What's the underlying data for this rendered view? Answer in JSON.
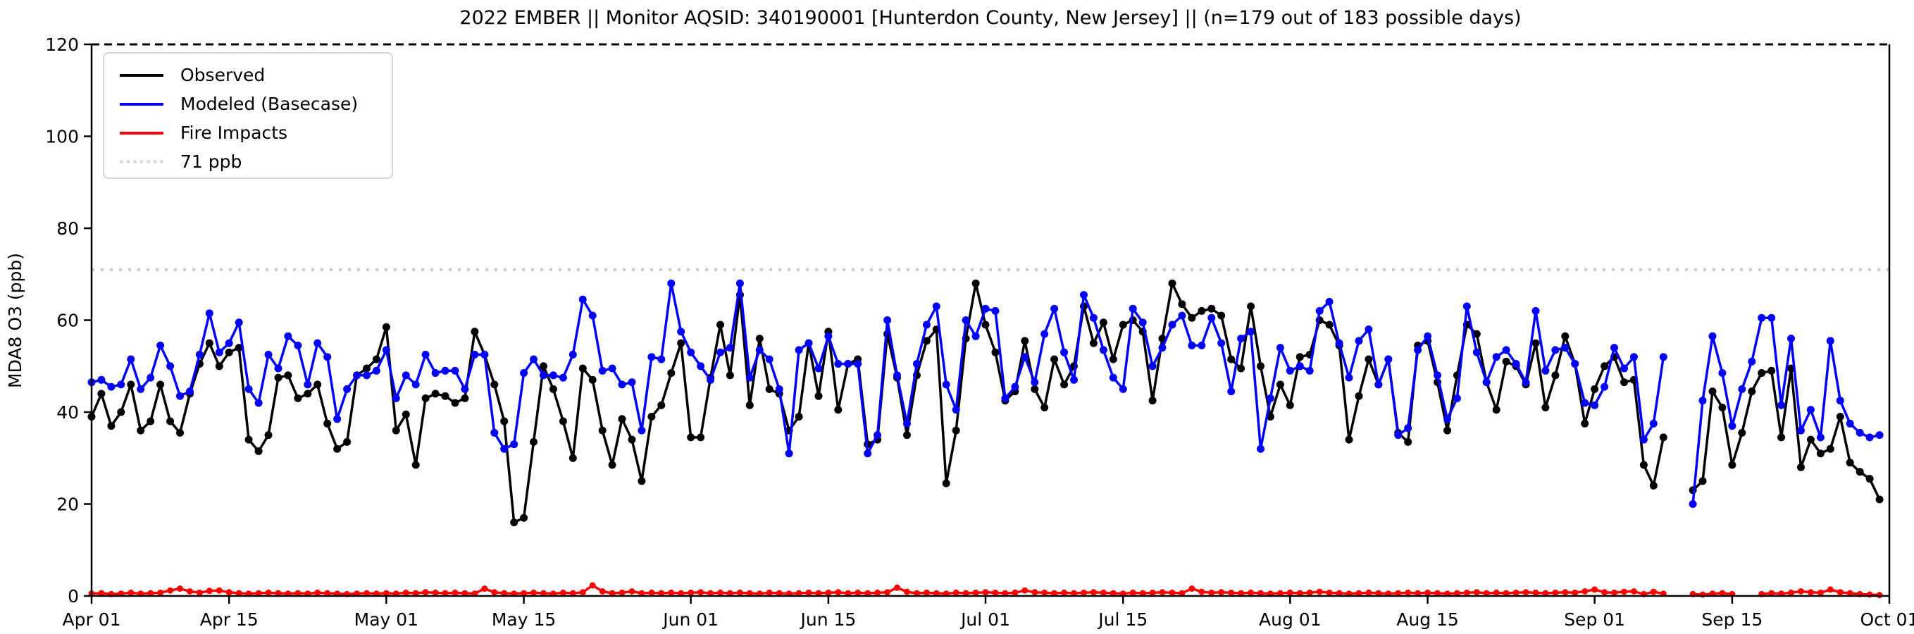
{
  "figure": {
    "title": "2022 EMBER || Monitor AQSID: 340190001 [Hunterdon County, New Jersey] || (n=179 out of 183 possible days)",
    "ylabel": "MDA8 O3 (ppb)"
  },
  "legend": {
    "items": [
      {
        "label": "Observed",
        "color": "#000000",
        "style": "solid"
      },
      {
        "label": "Modeled (Basecase)",
        "color": "#0000ff",
        "style": "solid"
      },
      {
        "label": "Fire Impacts",
        "color": "#ff0000",
        "style": "solid"
      },
      {
        "label": "71 ppb",
        "color": "#d9d9d9",
        "style": "dotted"
      }
    ]
  },
  "colors": {
    "observed": "#000000",
    "modeled": "#0000ff",
    "fire": "#ff0000",
    "threshold": "#c9c9c9",
    "spine": "#000000"
  },
  "chart_data": {
    "type": "line",
    "title": "2022 EMBER || Monitor AQSID: 340190001 [Hunterdon County, New Jersey] || (n=179 out of 183 possible days)",
    "xlabel": "",
    "ylabel": "MDA8 O3 (ppb)",
    "ylim": [
      0,
      120
    ],
    "y_ticks": [
      0,
      20,
      40,
      60,
      80,
      100,
      120
    ],
    "n_days": 183,
    "x_ticks": [
      {
        "day": 1,
        "label": "Apr 01"
      },
      {
        "day": 15,
        "label": "Apr 15"
      },
      {
        "day": 31,
        "label": "May 01"
      },
      {
        "day": 45,
        "label": "May 15"
      },
      {
        "day": 62,
        "label": "Jun 01"
      },
      {
        "day": 76,
        "label": "Jun 15"
      },
      {
        "day": 92,
        "label": "Jul 01"
      },
      {
        "day": 106,
        "label": "Jul 15"
      },
      {
        "day": 123,
        "label": "Aug 01"
      },
      {
        "day": 137,
        "label": "Aug 15"
      },
      {
        "day": 154,
        "label": "Sep 01"
      },
      {
        "day": 168,
        "label": "Sep 15"
      },
      {
        "day": 184,
        "label": "Oct 01"
      }
    ],
    "threshold": {
      "value": 71,
      "label": "71 ppb"
    },
    "legend_position": "upper-left",
    "grid": false,
    "series": [
      {
        "name": "Observed",
        "color": "#000000",
        "marker_radius": 5.5,
        "line_width": 3.5,
        "values": [
          39,
          44,
          37,
          40,
          46,
          36,
          38,
          46,
          38,
          35.5,
          44,
          50.5,
          55,
          50,
          53,
          54,
          34,
          31.5,
          35,
          47.5,
          48,
          43,
          44,
          46,
          37.5,
          32,
          33.5,
          48,
          49.5,
          51.5,
          58.5,
          36,
          39.5,
          28.5,
          43,
          44,
          43.5,
          42,
          43,
          57.5,
          52.5,
          46,
          38,
          16,
          17,
          33.5,
          50,
          45,
          38,
          30,
          49.5,
          47,
          36,
          28.5,
          38.5,
          34,
          25,
          39,
          41.5,
          48.5,
          55,
          34.5,
          34.5,
          47.5,
          59,
          48,
          65.5,
          41.5,
          56,
          45,
          44,
          36,
          39,
          55,
          43.5,
          57.5,
          40.5,
          50.5,
          51.5,
          33,
          34,
          57,
          47.5,
          35,
          48,
          55.5,
          58,
          24.5,
          36,
          56,
          68,
          59,
          53,
          42.5,
          44.5,
          55.5,
          45,
          41,
          51.5,
          46,
          50,
          63,
          55,
          59.5,
          51.5,
          59,
          60,
          57.5,
          42.5,
          56,
          68,
          63.5,
          60.5,
          62,
          62.5,
          61,
          51.5,
          49.5,
          63,
          50,
          39,
          46,
          41.5,
          52,
          52.5,
          60,
          59,
          54.5,
          34,
          43.5,
          51.5,
          46,
          51.5,
          35.5,
          33.5,
          54.5,
          55.5,
          46.5,
          36,
          48,
          59,
          57,
          46.5,
          40.5,
          51,
          50,
          46,
          55,
          41,
          48,
          56.5,
          50.5,
          37.5,
          45,
          50,
          52,
          46.5,
          47,
          28.5,
          24,
          34.5,
          null,
          null,
          23,
          25,
          44.5,
          41,
          28.5,
          35.5,
          44.5,
          48.5,
          49,
          34.5,
          49.5,
          28,
          34,
          31,
          32,
          39,
          29,
          27,
          25.5,
          21
        ]
      },
      {
        "name": "Modeled (Basecase)",
        "color": "#0000ff",
        "marker_radius": 5.5,
        "line_width": 3.5,
        "values": [
          46.5,
          47,
          45.5,
          46,
          51.5,
          45,
          47.5,
          54.5,
          50,
          43.5,
          44.5,
          52.5,
          61.5,
          53,
          55,
          59.5,
          45,
          42,
          52.5,
          49.5,
          56.5,
          54.5,
          46,
          55,
          52,
          38.5,
          45,
          48,
          48,
          49,
          53.5,
          43,
          48,
          46,
          52.5,
          48.5,
          49,
          49,
          45,
          52.5,
          52.5,
          35.5,
          32,
          33,
          48.5,
          51.5,
          48,
          48,
          47.5,
          52.5,
          64.5,
          61,
          49,
          49.5,
          46,
          46.5,
          36,
          52,
          51.5,
          68,
          57.5,
          53,
          50,
          47,
          53,
          54,
          68,
          47.5,
          53.5,
          51.5,
          45,
          31,
          53.5,
          55,
          49.5,
          56.5,
          50.5,
          50.5,
          50.5,
          31,
          35,
          60,
          48,
          37.5,
          50.5,
          59,
          63,
          46,
          40.5,
          60,
          56.5,
          62.5,
          62,
          43,
          45.5,
          52,
          46.5,
          57,
          62.5,
          53,
          47,
          65.5,
          60.5,
          53.5,
          47.5,
          45,
          62.5,
          59.5,
          50,
          54,
          59,
          61,
          54.5,
          54.5,
          60.5,
          55,
          44.5,
          56,
          57.5,
          32,
          43,
          54,
          49,
          50,
          49,
          62,
          64,
          55,
          47.5,
          55.5,
          58,
          46,
          51.5,
          35,
          36.5,
          53.5,
          56.5,
          48,
          38.5,
          43,
          63,
          53,
          46.5,
          52,
          53.5,
          50.5,
          46.5,
          62,
          49,
          53.5,
          54,
          50.5,
          42,
          41.5,
          45.5,
          54,
          49.5,
          52,
          34,
          37.5,
          52,
          null,
          null,
          20,
          42.5,
          56.5,
          48.5,
          37,
          45,
          51,
          60.5,
          60.5,
          41.5,
          56,
          36,
          40.5,
          34.5,
          55.5,
          42.5,
          37.5,
          35.5,
          34.5,
          35
        ]
      },
      {
        "name": "Fire Impacts",
        "color": "#ff0000",
        "marker_radius": 4.5,
        "line_width": 3.5,
        "values": [
          0.5,
          0.6,
          0.4,
          0.5,
          0.7,
          0.5,
          0.6,
          0.7,
          1.2,
          1.6,
          1.0,
          0.7,
          1.1,
          1.2,
          0.8,
          0.6,
          0.5,
          0.6,
          0.7,
          0.6,
          0.5,
          0.6,
          0.5,
          0.7,
          0.6,
          0.5,
          0.4,
          0.5,
          0.6,
          0.5,
          0.6,
          0.5,
          0.7,
          0.6,
          0.8,
          0.7,
          0.6,
          0.7,
          0.6,
          0.5,
          1.6,
          0.8,
          0.6,
          0.5,
          0.6,
          0.7,
          0.6,
          0.5,
          0.7,
          0.6,
          0.8,
          2.3,
          1.0,
          0.6,
          0.7,
          1.0,
          0.6,
          0.7,
          0.6,
          0.7,
          0.6,
          0.7,
          0.8,
          0.6,
          0.7,
          0.6,
          0.7,
          0.6,
          0.5,
          0.7,
          0.6,
          0.5,
          0.6,
          0.7,
          0.6,
          0.7,
          0.8,
          0.6,
          0.7,
          0.6,
          0.7,
          0.8,
          1.8,
          0.9,
          0.6,
          0.7,
          0.6,
          0.5,
          0.7,
          0.6,
          0.7,
          0.8,
          0.7,
          0.6,
          0.7,
          1.2,
          0.8,
          0.7,
          0.6,
          0.7,
          0.6,
          0.7,
          0.8,
          0.7,
          0.6,
          0.5,
          0.7,
          0.6,
          0.7,
          0.8,
          0.7,
          0.6,
          1.6,
          0.9,
          0.7,
          0.8,
          0.7,
          0.6,
          0.7,
          0.6,
          0.5,
          0.6,
          0.7,
          0.6,
          0.7,
          0.9,
          0.7,
          0.6,
          0.5,
          0.6,
          0.7,
          0.6,
          0.5,
          0.6,
          0.7,
          0.6,
          0.7,
          0.6,
          0.5,
          0.6,
          0.7,
          0.8,
          0.6,
          0.7,
          0.6,
          0.7,
          0.8,
          0.7,
          0.6,
          0.7,
          0.8,
          0.7,
          1.0,
          1.4,
          0.8,
          0.7,
          0.9,
          1.0,
          0.4,
          0.9,
          0.5,
          null,
          null,
          0.4,
          0.3,
          0.5,
          0.6,
          0.4,
          null,
          null,
          0.4,
          0.6,
          0.5,
          0.7,
          1.0,
          0.8,
          0.7,
          1.4,
          0.8,
          0.6,
          0.4,
          0.3,
          0.2
        ]
      }
    ]
  }
}
